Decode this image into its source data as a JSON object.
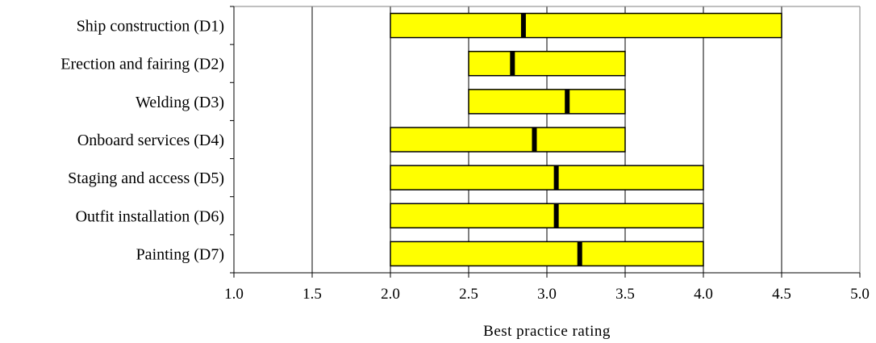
{
  "chart_data": {
    "type": "bar",
    "orientation": "horizontal",
    "subtype": "range-with-marker",
    "title": "",
    "xlabel": "Best practice rating",
    "ylabel": "",
    "xlim": [
      1.0,
      5.0
    ],
    "xticks": [
      "1.0",
      "1.5",
      "2.0",
      "2.5",
      "3.0",
      "3.5",
      "4.0",
      "4.5",
      "5.0"
    ],
    "grid": "vertical",
    "bar_color": "#ffff00",
    "marker_color": "#000000",
    "categories": [
      "Ship construction (D1)",
      "Erection and fairing (D2)",
      "Welding (D3)",
      "Onboard services (D4)",
      "Staging and access (D5)",
      "Outfit installation (D6)",
      "Painting (D7)"
    ],
    "min": [
      2.0,
      2.5,
      2.5,
      2.0,
      2.0,
      2.0,
      2.0
    ],
    "max": [
      4.5,
      3.5,
      3.5,
      3.5,
      4.0,
      4.0,
      4.0
    ],
    "mean": [
      2.85,
      2.78,
      3.13,
      2.92,
      3.06,
      3.06,
      3.21
    ]
  }
}
